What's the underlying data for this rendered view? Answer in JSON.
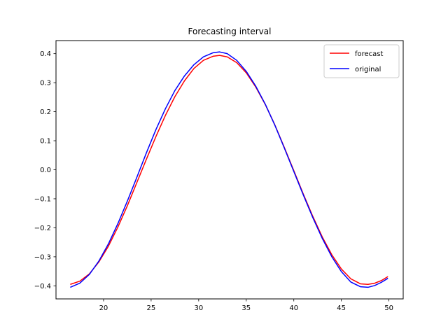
{
  "chart_data": {
    "type": "line",
    "title": "Forecasting interval",
    "xlabel": "",
    "ylabel": "",
    "xlim": [
      15.0,
      51.5
    ],
    "ylim": [
      -0.445,
      0.445
    ],
    "x_ticks": [
      20,
      25,
      30,
      35,
      40,
      45,
      50
    ],
    "x_tick_labels": [
      "20",
      "25",
      "30",
      "35",
      "40",
      "45",
      "50"
    ],
    "y_ticks": [
      -0.4,
      -0.3,
      -0.2,
      -0.1,
      0.0,
      0.1,
      0.2,
      0.3,
      0.4
    ],
    "y_tick_labels": [
      "−0.4",
      "−0.3",
      "−0.2",
      "−0.1",
      "0.0",
      "0.1",
      "0.2",
      "0.3",
      "0.4"
    ],
    "grid": false,
    "legend_placement": "upper right",
    "series": [
      {
        "name": "forecast",
        "color": "#ff0000",
        "x": [
          16.5,
          17.5,
          18.5,
          19.5,
          20.5,
          21.5,
          22.5,
          23.5,
          24.5,
          25.5,
          26.5,
          27.5,
          28.5,
          29.5,
          30.5,
          31.5,
          32.2,
          33.0,
          34.0,
          35.0,
          36.0,
          37.0,
          38.0,
          39.0,
          40.0,
          41.0,
          42.0,
          43.0,
          44.0,
          45.0,
          46.0,
          47.0,
          47.8,
          48.5,
          49.2,
          49.9
        ],
        "y": [
          -0.395,
          -0.384,
          -0.359,
          -0.318,
          -0.264,
          -0.198,
          -0.124,
          -0.044,
          0.036,
          0.114,
          0.187,
          0.252,
          0.306,
          0.349,
          0.377,
          0.391,
          0.394,
          0.389,
          0.369,
          0.334,
          0.285,
          0.225,
          0.155,
          0.077,
          -0.003,
          -0.084,
          -0.161,
          -0.232,
          -0.293,
          -0.342,
          -0.376,
          -0.393,
          -0.395,
          -0.391,
          -0.382,
          -0.368
        ]
      },
      {
        "name": "original",
        "color": "#0000ff",
        "x": [
          16.5,
          17.5,
          18.5,
          19.5,
          20.5,
          21.5,
          22.5,
          23.5,
          24.5,
          25.5,
          26.5,
          27.5,
          28.5,
          29.5,
          30.5,
          31.5,
          32.2,
          33.0,
          34.0,
          35.0,
          36.0,
          37.0,
          38.0,
          39.0,
          40.0,
          41.0,
          42.0,
          43.0,
          44.0,
          45.0,
          46.0,
          47.0,
          47.8,
          48.5,
          49.2,
          49.9
        ],
        "y": [
          -0.405,
          -0.391,
          -0.361,
          -0.315,
          -0.256,
          -0.186,
          -0.108,
          -0.026,
          0.058,
          0.138,
          0.21,
          0.273,
          0.323,
          0.362,
          0.389,
          0.403,
          0.406,
          0.4,
          0.377,
          0.339,
          0.288,
          0.226,
          0.154,
          0.075,
          -0.006,
          -0.087,
          -0.165,
          -0.237,
          -0.3,
          -0.351,
          -0.387,
          -0.403,
          -0.405,
          -0.399,
          -0.388,
          -0.374
        ]
      }
    ]
  }
}
